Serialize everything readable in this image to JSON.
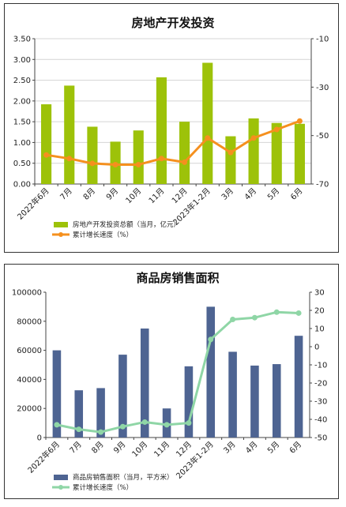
{
  "chart_data": [
    {
      "type": "bar",
      "title": "房地产开发投资",
      "categories": [
        "2022年6月",
        "7月",
        "8月",
        "9月",
        "10月",
        "11月",
        "12月",
        "2023年1-2月",
        "3月",
        "4月",
        "5月",
        "6月"
      ],
      "y_left_ticks": [
        "3.50",
        "3.00",
        "2.50",
        "2.00",
        "1.50",
        "1.00",
        "0.50",
        "0.00"
      ],
      "y_right_ticks": [
        "-10",
        "-30",
        "-50",
        "-70"
      ],
      "ylim_left": [
        0,
        3.5
      ],
      "ylim_right": [
        -70,
        -10
      ],
      "grid": true,
      "legend_position": "bottom",
      "series": [
        {
          "name": "房地产开发投资总额（当月，亿元）",
          "kind": "bar",
          "axis": "left",
          "color": "#9dc209",
          "values": [
            1.92,
            2.37,
            1.38,
            1.02,
            1.29,
            2.57,
            1.5,
            2.92,
            1.15,
            1.58,
            1.47,
            1.45
          ]
        },
        {
          "name": "累计增长速度（%）",
          "kind": "line",
          "axis": "right",
          "color": "#f5901e",
          "values": [
            -58,
            -59.5,
            -61.5,
            -62,
            -62,
            -59.5,
            -61,
            -51,
            -57,
            -51,
            -47.5,
            -44
          ]
        }
      ]
    },
    {
      "type": "bar",
      "title": "商品房销售面积",
      "categories": [
        "2022年6月",
        "7月",
        "8月",
        "9月",
        "10月",
        "11月",
        "12月",
        "2023年1-2月",
        "3月",
        "4月",
        "5月",
        "6月"
      ],
      "y_left_ticks": [
        "100000",
        "80000",
        "60000",
        "40000",
        "20000",
        "0"
      ],
      "y_right_ticks": [
        "30",
        "20",
        "10",
        "0",
        "-10",
        "-20",
        "-30",
        "-40",
        "-50"
      ],
      "ylim_left": [
        0,
        100000
      ],
      "ylim_right": [
        -50,
        30
      ],
      "grid": false,
      "legend_position": "bottom",
      "series": [
        {
          "name": "商品房销售面积（当月，平方米）",
          "kind": "bar",
          "axis": "left",
          "color": "#4e6492",
          "values": [
            60000,
            32500,
            34000,
            57000,
            75000,
            20000,
            49000,
            90000,
            59000,
            49500,
            50500,
            70000
          ]
        },
        {
          "name": "累计增长速度（%）",
          "kind": "line",
          "axis": "right",
          "color": "#8fd6a6",
          "values": [
            -43,
            -45.5,
            -47,
            -44,
            -41.5,
            -43,
            -42,
            4,
            15,
            16,
            19,
            18.5
          ]
        }
      ]
    }
  ]
}
